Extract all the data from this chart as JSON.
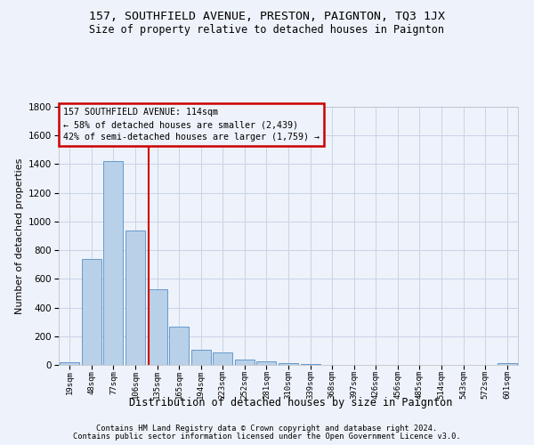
{
  "title": "157, SOUTHFIELD AVENUE, PRESTON, PAIGNTON, TQ3 1JX",
  "subtitle": "Size of property relative to detached houses in Paignton",
  "xlabel": "Distribution of detached houses by size in Paignton",
  "ylabel": "Number of detached properties",
  "footer1": "Contains HM Land Registry data © Crown copyright and database right 2024.",
  "footer2": "Contains public sector information licensed under the Open Government Licence v3.0.",
  "categories": [
    "19sqm",
    "48sqm",
    "77sqm",
    "106sqm",
    "135sqm",
    "165sqm",
    "194sqm",
    "223sqm",
    "252sqm",
    "281sqm",
    "310sqm",
    "339sqm",
    "368sqm",
    "397sqm",
    "426sqm",
    "456sqm",
    "485sqm",
    "514sqm",
    "543sqm",
    "572sqm",
    "601sqm"
  ],
  "values": [
    20,
    740,
    1420,
    940,
    530,
    265,
    105,
    90,
    35,
    25,
    15,
    5,
    3,
    3,
    2,
    2,
    1,
    1,
    1,
    1,
    12
  ],
  "bar_color": "#b8d0e8",
  "bar_edgecolor": "#6699cc",
  "bar_linewidth": 0.7,
  "property_line_x": 3.62,
  "annotation_text": "157 SOUTHFIELD AVENUE: 114sqm\n← 58% of detached houses are smaller (2,439)\n42% of semi-detached houses are larger (1,759) →",
  "annotation_box_color": "#cc0000",
  "property_line_color": "#cc0000",
  "grid_color": "#c8d4e8",
  "bg_color": "#eef2fa",
  "ylim": [
    0,
    1800
  ],
  "yticks": [
    0,
    200,
    400,
    600,
    800,
    1000,
    1200,
    1400,
    1600,
    1800
  ]
}
